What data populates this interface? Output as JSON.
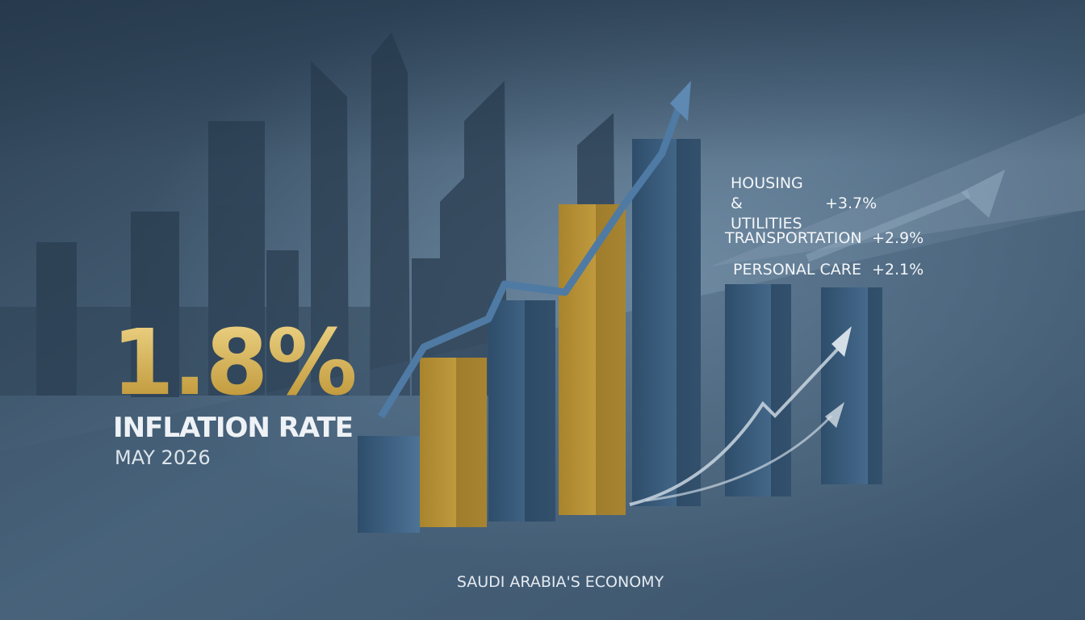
{
  "headline": {
    "value": "1.8%",
    "label": "INFLATION RATE",
    "date": "MAY 2026"
  },
  "categories": [
    {
      "label": "HOUSING & UTILITIES",
      "change": "+3.7%"
    },
    {
      "label": "TRANSPORTATION",
      "change": "+2.9%"
    },
    {
      "label": "PERSONAL CARE",
      "change": "+2.1%"
    }
  ],
  "footer": "SAUDI ARABIA'S ECONOMY"
}
